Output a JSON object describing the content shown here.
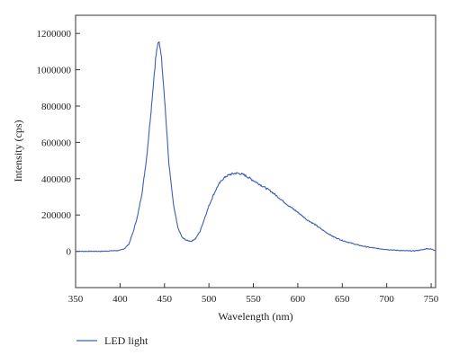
{
  "chart_data": {
    "type": "line",
    "xlabel": "Wavelength (nm)",
    "ylabel": "Intensity (cps)",
    "xlim": [
      350,
      755
    ],
    "ylim": [
      -200000,
      1300000
    ],
    "xticks": [
      350,
      400,
      450,
      500,
      550,
      600,
      650,
      700,
      750
    ],
    "yticks": [
      0,
      200000,
      400000,
      600000,
      800000,
      1000000,
      1200000
    ],
    "xtick_labels": [
      "350",
      "400",
      "450",
      "500",
      "550",
      "600",
      "650",
      "700",
      "750"
    ],
    "ytick_labels": [
      "0",
      "200000",
      "400000",
      "600000",
      "800000",
      "1000000",
      "1200000"
    ],
    "legend_position": "bottom-left, below plot",
    "grid": false,
    "series": [
      {
        "name": "LED light",
        "color": "#3f5fb5",
        "x": [
          350,
          380,
          400,
          405,
          410,
          415,
          420,
          425,
          430,
          435,
          438,
          440,
          442,
          444,
          446,
          448,
          450,
          452,
          455,
          460,
          465,
          470,
          475,
          480,
          485,
          490,
          495,
          500,
          505,
          510,
          515,
          520,
          525,
          530,
          535,
          540,
          545,
          550,
          555,
          560,
          570,
          580,
          590,
          600,
          610,
          620,
          630,
          640,
          650,
          660,
          670,
          680,
          690,
          700,
          710,
          720,
          730,
          740,
          745,
          750,
          755
        ],
        "y": [
          0,
          0,
          5000,
          15000,
          40000,
          110000,
          200000,
          330000,
          520000,
          780000,
          950000,
          1060000,
          1130000,
          1150000,
          1100000,
          980000,
          850000,
          700000,
          480000,
          260000,
          130000,
          75000,
          60000,
          55000,
          70000,
          110000,
          180000,
          250000,
          310000,
          360000,
          395000,
          415000,
          425000,
          430000,
          428000,
          420000,
          405000,
          390000,
          375000,
          360000,
          330000,
          290000,
          250000,
          215000,
          175000,
          145000,
          110000,
          80000,
          60000,
          45000,
          32000,
          22000,
          15000,
          10000,
          6000,
          3000,
          2000,
          8000,
          15000,
          12000,
          5000
        ]
      }
    ]
  }
}
